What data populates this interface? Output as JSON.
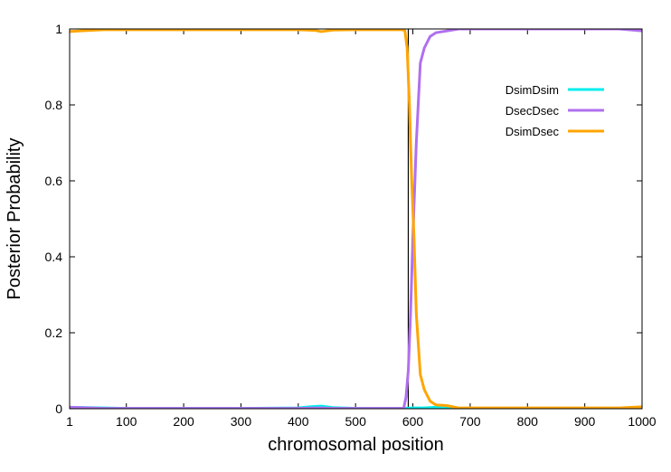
{
  "chart_data": {
    "type": "line",
    "title": "",
    "xlabel": "chromosomal position",
    "ylabel": "Posterior Probability",
    "xlim": [
      1,
      1000
    ],
    "ylim": [
      0,
      1
    ],
    "x_ticks": [
      1,
      100,
      200,
      300,
      400,
      500,
      600,
      700,
      800,
      900,
      1000
    ],
    "y_ticks": [
      0,
      0.2,
      0.4,
      0.6,
      0.8,
      1
    ],
    "grid": false,
    "legend_position": "top-right",
    "vertical_marker_x": 592,
    "series": [
      {
        "name": "DsimDsim",
        "color": "#00eeee",
        "points": [
          [
            1,
            0.004
          ],
          [
            100,
            0.001
          ],
          [
            200,
            0.001
          ],
          [
            300,
            0.001
          ],
          [
            400,
            0.002
          ],
          [
            420,
            0.005
          ],
          [
            440,
            0.007
          ],
          [
            460,
            0.003
          ],
          [
            500,
            0.001
          ],
          [
            580,
            0.001
          ],
          [
            600,
            0.002
          ],
          [
            620,
            0.002
          ],
          [
            640,
            0.004
          ],
          [
            660,
            0.004
          ],
          [
            680,
            0.001
          ],
          [
            700,
            0.0005
          ],
          [
            800,
            0.0005
          ],
          [
            900,
            0.0005
          ],
          [
            1000,
            0.0005
          ]
        ]
      },
      {
        "name": "DsecDsec",
        "color": "#b070ee",
        "points": [
          [
            1,
            0.004
          ],
          [
            20,
            0.003
          ],
          [
            60,
            0.001
          ],
          [
            100,
            0.001
          ],
          [
            200,
            0.001
          ],
          [
            300,
            0.001
          ],
          [
            400,
            0.001
          ],
          [
            440,
            0.002
          ],
          [
            460,
            0.001
          ],
          [
            500,
            0.001
          ],
          [
            570,
            0.001
          ],
          [
            584,
            0.001
          ],
          [
            588,
            0.03
          ],
          [
            592,
            0.1
          ],
          [
            596,
            0.25
          ],
          [
            600,
            0.45
          ],
          [
            606,
            0.7
          ],
          [
            613,
            0.91
          ],
          [
            620,
            0.95
          ],
          [
            630,
            0.98
          ],
          [
            640,
            0.99
          ],
          [
            660,
            0.995
          ],
          [
            680,
            1.0
          ],
          [
            700,
            1.0
          ],
          [
            800,
            1.0
          ],
          [
            900,
            1.0
          ],
          [
            960,
            1.0
          ],
          [
            1000,
            0.995
          ]
        ]
      },
      {
        "name": "DsimDsec",
        "color": "#ffa500",
        "points": [
          [
            1,
            0.993
          ],
          [
            20,
            0.995
          ],
          [
            60,
            0.998
          ],
          [
            100,
            0.998
          ],
          [
            200,
            0.998
          ],
          [
            300,
            0.998
          ],
          [
            400,
            0.998
          ],
          [
            430,
            0.996
          ],
          [
            440,
            0.993
          ],
          [
            460,
            0.997
          ],
          [
            500,
            0.998
          ],
          [
            580,
            0.998
          ],
          [
            586,
            0.996
          ],
          [
            590,
            0.95
          ],
          [
            594,
            0.8
          ],
          [
            598,
            0.6
          ],
          [
            602,
            0.45
          ],
          [
            606,
            0.25
          ],
          [
            613,
            0.09
          ],
          [
            620,
            0.05
          ],
          [
            630,
            0.02
          ],
          [
            640,
            0.01
          ],
          [
            660,
            0.008
          ],
          [
            680,
            0.002
          ],
          [
            700,
            0.002
          ],
          [
            800,
            0.002
          ],
          [
            900,
            0.002
          ],
          [
            960,
            0.002
          ],
          [
            1000,
            0.005
          ]
        ]
      }
    ]
  }
}
